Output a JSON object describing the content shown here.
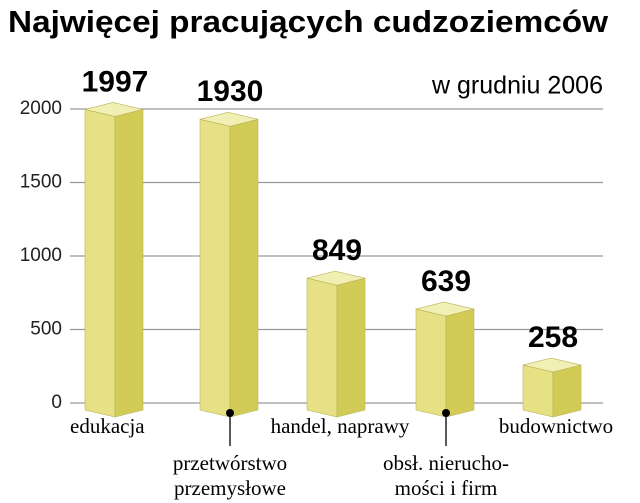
{
  "chart_data": {
    "type": "bar3d",
    "title": "Najwięcej pracujących cudzoziemców",
    "subtitle": "w grudniu 2006",
    "categories": [
      [
        "edukacja"
      ],
      [
        "przetwórstwo",
        "przemysłowe"
      ],
      [
        "handel, naprawy"
      ],
      [
        "obsł. nierucho-",
        "mości i firm"
      ],
      [
        "budownictwo"
      ]
    ],
    "values": [
      1997,
      1930,
      849,
      639,
      258
    ],
    "ylim": [
      0,
      2000
    ],
    "yticks": [
      0,
      500,
      1000,
      1500,
      2000
    ],
    "grid": true,
    "color": "#e6e184"
  }
}
